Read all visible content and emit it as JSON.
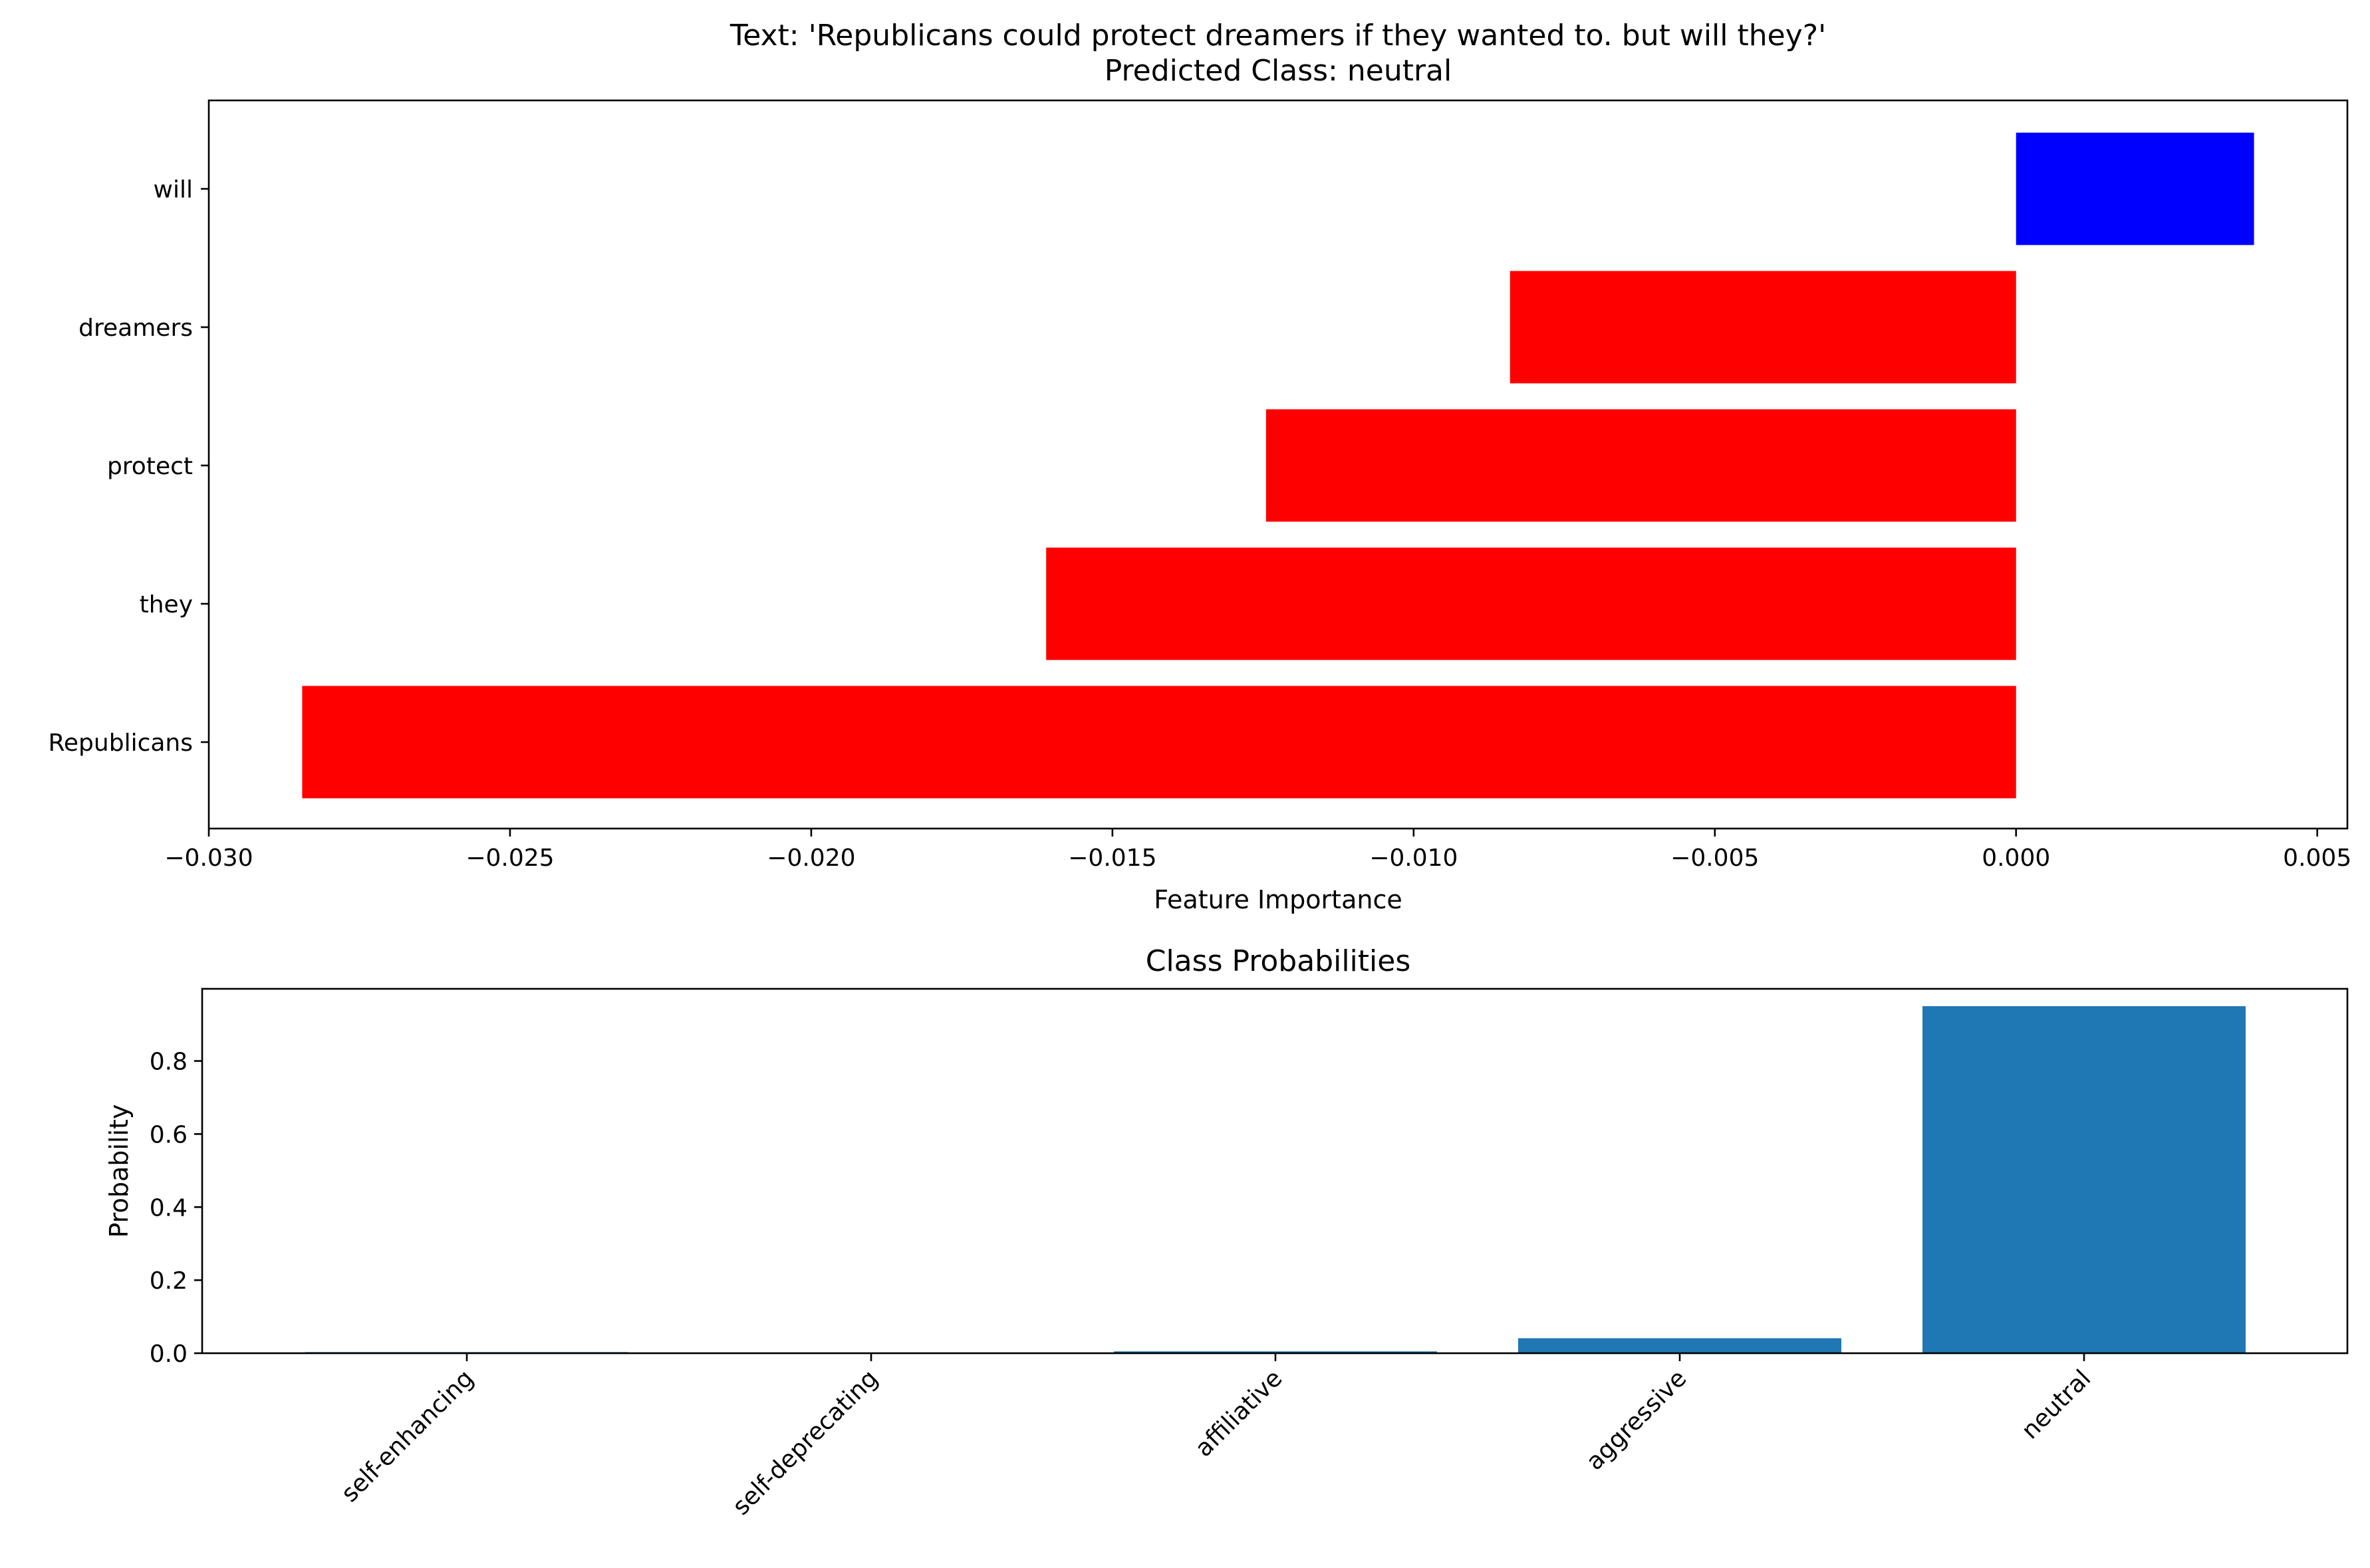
{
  "chart_data": [
    {
      "type": "bar",
      "orientation": "horizontal",
      "title_lines": [
        "Text: 'Republicans could protect dreamers if they wanted to. but will they?'",
        "Predicted Class: neutral"
      ],
      "xlabel": "Feature Importance",
      "ylabel": "",
      "categories": [
        "will",
        "dreamers",
        "protect",
        "they",
        "Republicans"
      ],
      "values": [
        0.00395,
        -0.0084,
        -0.01245,
        -0.0161,
        -0.02845
      ],
      "bar_colors": [
        "#0000ff",
        "#ff0000",
        "#ff0000",
        "#ff0000",
        "#ff0000"
      ],
      "xlim": [
        -0.03,
        0.0055
      ],
      "xticks": [
        -0.03,
        -0.025,
        -0.02,
        -0.015,
        -0.01,
        -0.005,
        0.0,
        0.005
      ],
      "xtick_labels": [
        "−0.030",
        "−0.025",
        "−0.020",
        "−0.015",
        "−0.010",
        "−0.005",
        "0.000",
        "0.005"
      ],
      "grid": false,
      "legend": "none"
    },
    {
      "type": "bar",
      "title": "Class Probabilities",
      "xlabel": "",
      "ylabel": "Probability",
      "categories": [
        "self-enhancing",
        "self-deprecating",
        "affiliative",
        "aggressive",
        "neutral"
      ],
      "values": [
        0.003,
        0.001,
        0.005,
        0.041,
        0.95
      ],
      "bar_color": "#1f77b4",
      "ylim": [
        0,
        0.9975
      ],
      "yticks": [
        0.0,
        0.2,
        0.4,
        0.6,
        0.8
      ],
      "ytick_labels": [
        "0.0",
        "0.2",
        "0.4",
        "0.6",
        "0.8"
      ],
      "tick_label_rotation": 45,
      "grid": false,
      "legend": "none"
    }
  ]
}
